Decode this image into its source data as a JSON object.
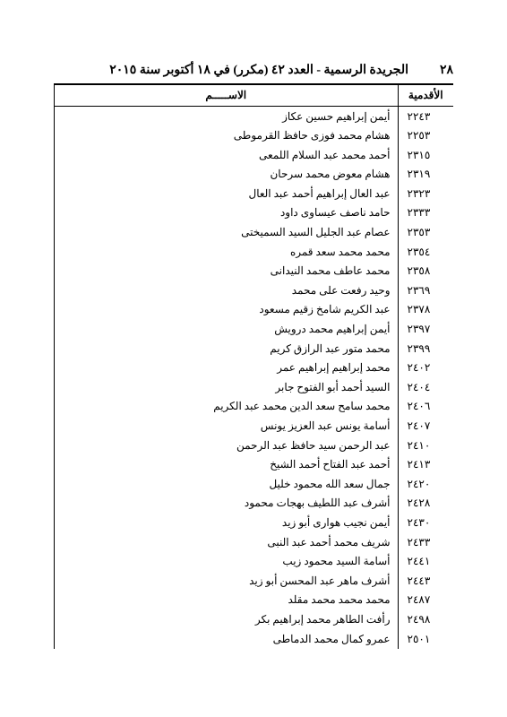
{
  "page": {
    "number": "٢٨",
    "title": "الجريدة الرسمية - العدد ٤٢ (مكرر) في ١٨ أكتوبر سنة ٢٠١٥"
  },
  "table": {
    "headers": {
      "seniority": "الأقدمية",
      "name": "الاســـــم"
    },
    "rows": [
      {
        "seniority": "٢٢٤٣",
        "name": "أيمن إبراهيم حسين عكاز"
      },
      {
        "seniority": "٢٢٥٣",
        "name": "هشام محمد فوزى حافظ القرموطى"
      },
      {
        "seniority": "٢٣١٥",
        "name": "أحمد محمد عبد السلام اللمعى"
      },
      {
        "seniority": "٢٣١٩",
        "name": "هشام معوض محمد سرحان"
      },
      {
        "seniority": "٢٣٢٣",
        "name": "عبد العال إبراهيم أحمد عبد العال"
      },
      {
        "seniority": "٢٣٣٣",
        "name": "حامد ناصف عيساوى داود"
      },
      {
        "seniority": "٢٣٥٣",
        "name": "عصام عبد الجليل السيد السميختى"
      },
      {
        "seniority": "٢٣٥٤",
        "name": "محمد محمد سعد قمره"
      },
      {
        "seniority": "٢٣٥٨",
        "name": "محمد عاطف محمد النيدانى"
      },
      {
        "seniority": "٢٣٦٩",
        "name": "وحيد رفعت على محمد"
      },
      {
        "seniority": "٢٣٧٨",
        "name": "عبد الكريم شامخ زقيم مسعود"
      },
      {
        "seniority": "٢٣٩٧",
        "name": "أيمن إبراهيم محمد درويش"
      },
      {
        "seniority": "٢٣٩٩",
        "name": "محمد متور عبد الرازق كريم"
      },
      {
        "seniority": "٢٤٠٢",
        "name": "محمد إبراهيم إبراهيم عمر"
      },
      {
        "seniority": "٢٤٠٤",
        "name": "السيد أحمد أبو الفتوح جابر"
      },
      {
        "seniority": "٢٤٠٦",
        "name": "محمد سامح سعد الدين محمد عبد الكريم"
      },
      {
        "seniority": "٢٤٠٧",
        "name": "أسامة يونس عبد العزيز يونس"
      },
      {
        "seniority": "٢٤١٠",
        "name": "عبد الرحمن سيد حافظ عبد الرحمن"
      },
      {
        "seniority": "٢٤١٣",
        "name": "أحمد عبد الفتاح أحمد الشيخ"
      },
      {
        "seniority": "٢٤٢٠",
        "name": "جمال سعد الله محمود خليل"
      },
      {
        "seniority": "٢٤٢٨",
        "name": "أشرف عبد اللطيف بهجات محمود"
      },
      {
        "seniority": "٢٤٣٠",
        "name": "أيمن نجيب هوارى أبو زيد"
      },
      {
        "seniority": "٢٤٣٣",
        "name": "شريف محمد أحمد عبد النبى"
      },
      {
        "seniority": "٢٤٤١",
        "name": "أسامة السيد محمود زيب"
      },
      {
        "seniority": "٢٤٤٣",
        "name": "أشرف ماهر عبد المحسن أبو زيد"
      },
      {
        "seniority": "٢٤٨٧",
        "name": "محمد محمد محمد مقلد"
      },
      {
        "seniority": "٢٤٩٨",
        "name": "رأفت الطاهر محمد إبراهيم بكر"
      },
      {
        "seniority": "٢٥٠١",
        "name": "عمرو كمال محمد الدماطى"
      }
    ]
  },
  "style": {
    "background": "#ffffff",
    "text_color": "#000000",
    "border_color": "#000000",
    "header_fontsize": 14,
    "cell_fontsize": 12
  }
}
